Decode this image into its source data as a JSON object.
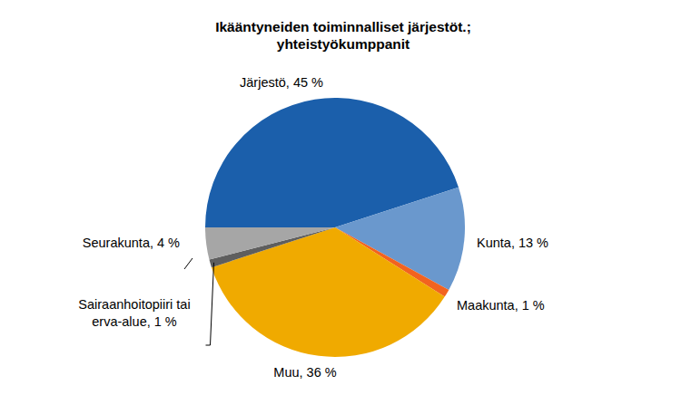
{
  "chart_data": {
    "type": "pie",
    "title": [
      "Ikääntyneiden toiminnalliset järjestöt.;",
      "yhteistyökumppanit"
    ],
    "categories": [
      "Järjestö",
      "Kunta",
      "Maakunta",
      "Muu",
      "Sairaanhoitopiiri tai erva-alue",
      "Seurakunta"
    ],
    "values": [
      45,
      13,
      1,
      36,
      1,
      4
    ],
    "value_labels": [
      "45 %",
      "13 %",
      "1 %",
      "36 %",
      "1 %",
      "4 %"
    ],
    "colors": [
      "#1b5fab",
      "#6a98cd",
      "#f2631f",
      "#f0aa00",
      "#5e5e5e",
      "#a6a6a6"
    ],
    "data_labels": true
  }
}
